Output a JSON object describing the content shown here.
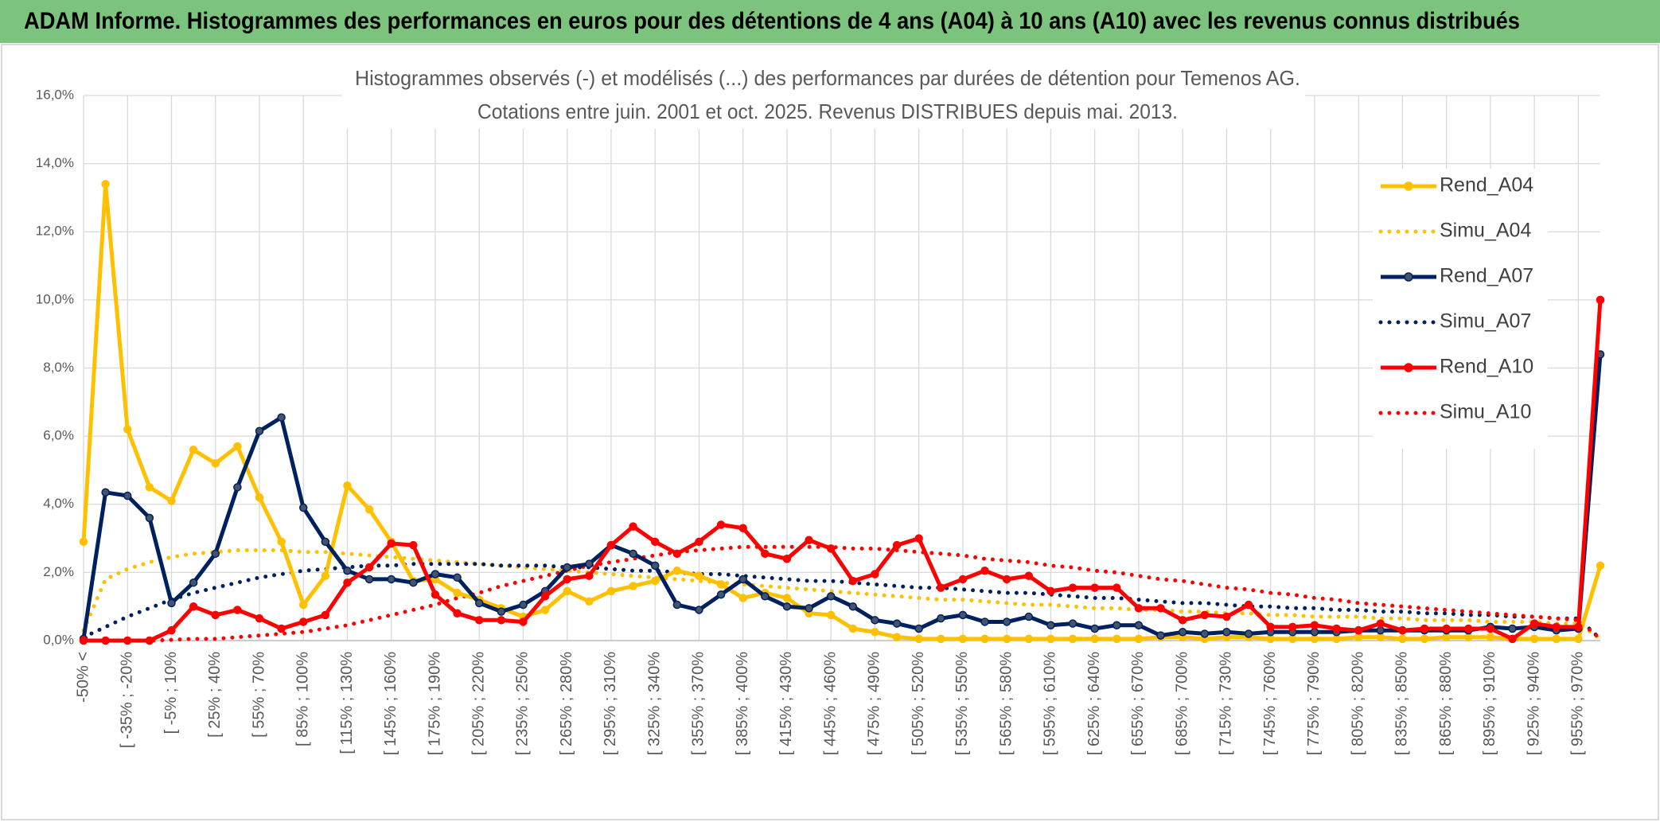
{
  "header": {
    "title": "ADAM Informe. Histogrammes des performances en euros pour des détentions de 4 ans (A04) à 10 ans (A10) avec les revenus connus distribués"
  },
  "chart_data": {
    "type": "line",
    "title": "Histogrammes observés (-) et modélisés (...) des performances par durées de détention pour Temenos AG.",
    "subtitle": "Cotations entre juin. 2001 et oct. 2025. Revenus DISTRIBUES depuis mai. 2013.",
    "categories": [
      "-50% <",
      null,
      "[ -35% ; -20%",
      null,
      "[ -5% ; 10%",
      null,
      "[ 25% ; 40%",
      null,
      "[ 55% ; 70%",
      null,
      "[ 85% ; 100%",
      null,
      "[ 115% ; 130%",
      null,
      "[ 145% ; 160%",
      null,
      "[ 175% ; 190%",
      null,
      "[ 205% ; 220%",
      null,
      "[ 235% ; 250%",
      null,
      "[ 265% ; 280%",
      null,
      "[ 295% ; 310%",
      null,
      "[ 325% ; 340%",
      null,
      "[ 355% ; 370%",
      null,
      "[ 385% ; 400%",
      null,
      "[ 415% ; 430%",
      null,
      "[ 445% ; 460%",
      null,
      "[ 475% ; 490%",
      null,
      "[ 505% ; 520%",
      null,
      "[ 535% ; 550%",
      null,
      "[ 565% ; 580%",
      null,
      "[ 595% ; 610%",
      null,
      "[ 625% ; 640%",
      null,
      "[ 655% ; 670%",
      null,
      "[ 685% ; 700%",
      null,
      "[ 715% ; 730%",
      null,
      "[ 745% ; 760%",
      null,
      "[ 775% ; 790%",
      null,
      "[ 805% ; 820%",
      null,
      "[ 835% ; 850%",
      null,
      "[ 865% ; 880%",
      null,
      "[ 895% ; 910%",
      null,
      "[ 925% ; 940%",
      null,
      "[ 955% ; 970%",
      null
    ],
    "ylim": [
      0,
      16
    ],
    "yticks": [
      {
        "value": 0,
        "label": "0,0%"
      },
      {
        "value": 2,
        "label": "2,0%"
      },
      {
        "value": 4,
        "label": "4,0%"
      },
      {
        "value": 6,
        "label": "6,0%"
      },
      {
        "value": 8,
        "label": "8,0%"
      },
      {
        "value": 10,
        "label": "10,0%"
      },
      {
        "value": 12,
        "label": "12,0%"
      },
      {
        "value": 14,
        "label": "14,0%"
      },
      {
        "value": 16,
        "label": "16,0%"
      }
    ],
    "grid": true,
    "legend": "right",
    "series": [
      {
        "name": "Rend_A04",
        "color": "#ffc000",
        "style": "solid",
        "marker": true,
        "marker_color": "#ffc000",
        "values": [
          2.9,
          13.4,
          6.2,
          4.5,
          4.1,
          5.6,
          5.2,
          5.7,
          4.2,
          2.9,
          1.05,
          1.9,
          4.55,
          3.85,
          2.9,
          1.75,
          1.8,
          1.4,
          1.2,
          0.95,
          0.7,
          0.9,
          1.45,
          1.15,
          1.45,
          1.6,
          1.75,
          2.05,
          1.9,
          1.65,
          1.25,
          1.4,
          1.25,
          0.8,
          0.75,
          0.35,
          0.25,
          0.1,
          0.05,
          0.05,
          0.05,
          0.05,
          0.05,
          0.05,
          0.05,
          0.05,
          0.05,
          0.05,
          0.05,
          0.1,
          0.1,
          0.05,
          0.1,
          0.1,
          0.05,
          0.05,
          0.05,
          0.05,
          0.1,
          0.1,
          0.05,
          0.05,
          0.1,
          0.1,
          0.1,
          0.05,
          0.05,
          0.05,
          0.05,
          2.2
        ]
      },
      {
        "name": "Simu_A04",
        "color": "#ffc000",
        "style": "dotted",
        "marker": false,
        "values": [
          0.3,
          1.8,
          2.1,
          2.3,
          2.45,
          2.55,
          2.6,
          2.65,
          2.65,
          2.65,
          2.6,
          2.6,
          2.55,
          2.5,
          2.45,
          2.4,
          2.35,
          2.3,
          2.25,
          2.2,
          2.15,
          2.1,
          2.05,
          2.0,
          1.95,
          1.9,
          1.85,
          1.8,
          1.75,
          1.7,
          1.65,
          1.6,
          1.55,
          1.5,
          1.45,
          1.4,
          1.35,
          1.3,
          1.25,
          1.2,
          1.2,
          1.15,
          1.1,
          1.05,
          1.05,
          1.0,
          0.95,
          0.95,
          0.9,
          0.9,
          0.85,
          0.85,
          0.8,
          0.8,
          0.75,
          0.75,
          0.7,
          0.7,
          0.7,
          0.65,
          0.65,
          0.6,
          0.6,
          0.6,
          0.55,
          0.55,
          0.55,
          0.5,
          0.5,
          0.05
        ]
      },
      {
        "name": "Rend_A07",
        "color": "#002060",
        "style": "solid",
        "marker": true,
        "marker_color": "#44546a",
        "values": [
          0.05,
          4.35,
          4.25,
          3.6,
          1.1,
          1.7,
          2.55,
          4.5,
          6.15,
          6.55,
          3.9,
          2.9,
          2.05,
          1.8,
          1.8,
          1.7,
          1.95,
          1.85,
          1.1,
          0.85,
          1.05,
          1.45,
          2.15,
          2.25,
          2.8,
          2.55,
          2.2,
          1.05,
          0.9,
          1.35,
          1.8,
          1.3,
          1.0,
          0.95,
          1.3,
          1.0,
          0.6,
          0.5,
          0.35,
          0.65,
          0.75,
          0.55,
          0.55,
          0.7,
          0.45,
          0.5,
          0.35,
          0.45,
          0.45,
          0.15,
          0.25,
          0.2,
          0.25,
          0.2,
          0.25,
          0.25,
          0.25,
          0.25,
          0.3,
          0.3,
          0.3,
          0.3,
          0.3,
          0.3,
          0.4,
          0.35,
          0.4,
          0.3,
          0.35,
          8.4
        ]
      },
      {
        "name": "Simu_A07",
        "color": "#002060",
        "style": "dotted",
        "marker": false,
        "values": [
          0.1,
          0.4,
          0.7,
          0.95,
          1.2,
          1.4,
          1.55,
          1.7,
          1.85,
          1.95,
          2.05,
          2.1,
          2.15,
          2.2,
          2.2,
          2.25,
          2.25,
          2.25,
          2.25,
          2.2,
          2.2,
          2.2,
          2.15,
          2.15,
          2.1,
          2.05,
          2.05,
          2.0,
          1.95,
          1.95,
          1.9,
          1.85,
          1.8,
          1.75,
          1.75,
          1.7,
          1.65,
          1.6,
          1.55,
          1.55,
          1.5,
          1.45,
          1.4,
          1.4,
          1.35,
          1.3,
          1.25,
          1.25,
          1.2,
          1.15,
          1.1,
          1.1,
          1.05,
          1.0,
          1.0,
          0.95,
          0.95,
          0.9,
          0.9,
          0.85,
          0.85,
          0.8,
          0.8,
          0.75,
          0.75,
          0.7,
          0.7,
          0.65,
          0.65,
          0.05
        ]
      },
      {
        "name": "Rend_A10",
        "color": "#ff0000",
        "style": "solid",
        "marker": true,
        "marker_color": "#ff0000",
        "values": [
          0,
          0,
          0,
          0,
          0.3,
          1.0,
          0.75,
          0.9,
          0.65,
          0.35,
          0.55,
          0.75,
          1.7,
          2.15,
          2.85,
          2.8,
          1.35,
          0.8,
          0.6,
          0.6,
          0.55,
          1.3,
          1.8,
          1.9,
          2.8,
          3.35,
          2.9,
          2.55,
          2.9,
          3.4,
          3.3,
          2.55,
          2.4,
          2.95,
          2.7,
          1.75,
          1.95,
          2.8,
          3.0,
          1.55,
          1.8,
          2.05,
          1.8,
          1.9,
          1.45,
          1.55,
          1.55,
          1.55,
          0.95,
          0.95,
          0.6,
          0.75,
          0.7,
          1.05,
          0.4,
          0.4,
          0.45,
          0.35,
          0.3,
          0.5,
          0.3,
          0.35,
          0.35,
          0.35,
          0.35,
          0.05,
          0.5,
          0.4,
          0.4,
          10.0
        ]
      },
      {
        "name": "Simu_A10",
        "color": "#ff0000",
        "style": "dotted",
        "marker": false,
        "values": [
          0,
          0,
          0,
          0,
          0.02,
          0.05,
          0.05,
          0.1,
          0.15,
          0.2,
          0.25,
          0.35,
          0.45,
          0.6,
          0.75,
          0.9,
          1.05,
          1.25,
          1.4,
          1.6,
          1.75,
          1.9,
          2.05,
          2.2,
          2.3,
          2.4,
          2.5,
          2.6,
          2.65,
          2.7,
          2.75,
          2.75,
          2.75,
          2.75,
          2.75,
          2.7,
          2.7,
          2.65,
          2.6,
          2.55,
          2.5,
          2.4,
          2.35,
          2.3,
          2.2,
          2.15,
          2.05,
          2.0,
          1.9,
          1.8,
          1.75,
          1.65,
          1.55,
          1.5,
          1.4,
          1.35,
          1.25,
          1.2,
          1.1,
          1.05,
          1.0,
          0.95,
          0.9,
          0.85,
          0.8,
          0.75,
          0.7,
          0.65,
          0.6,
          0.05
        ]
      }
    ]
  }
}
